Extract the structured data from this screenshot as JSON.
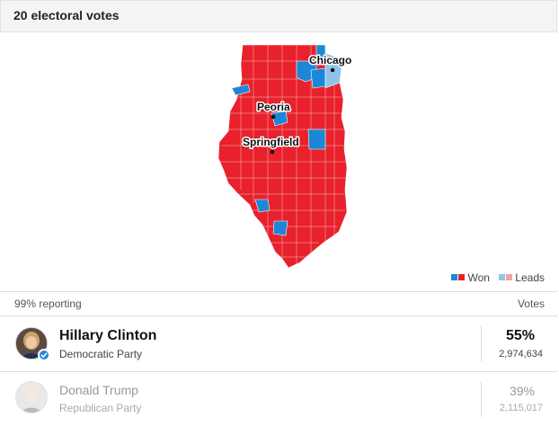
{
  "header": {
    "title": "20 electoral votes"
  },
  "map": {
    "cities": [
      {
        "name": "Chicago"
      },
      {
        "name": "Peoria"
      },
      {
        "name": "Springfield"
      }
    ],
    "colors": {
      "rep_won": "#e8212c",
      "dem_won": "#1b87d6",
      "dem_leads": "#8fc4ea",
      "rep_leads": "#f2a0a0"
    }
  },
  "legend": {
    "won_label": "Won",
    "leads_label": "Leads"
  },
  "results": {
    "reporting": "99% reporting",
    "votes_header": "Votes",
    "candidates": [
      {
        "name": "Hillary Clinton",
        "party": "Democratic Party",
        "percent": "55%",
        "votes": "2,974,634",
        "winner": true
      },
      {
        "name": "Donald Trump",
        "party": "Republican Party",
        "percent": "39%",
        "votes": "2,115,017",
        "winner": false
      }
    ]
  }
}
